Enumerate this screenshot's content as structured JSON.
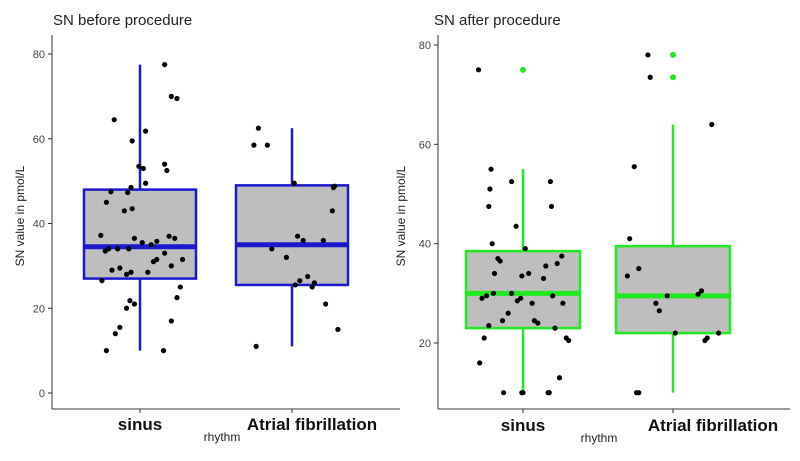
{
  "chart_data": [
    {
      "type": "box",
      "title": "SN before procedure",
      "xlabel": "rhythm",
      "ylabel": "SN value in pmol/L",
      "ylim": [
        -2,
        84
      ],
      "yticks": [
        0,
        20,
        40,
        60,
        80
      ],
      "grid": false,
      "color": "#1a1acc",
      "categories": [
        "sinus",
        "Atrial fibrillation"
      ],
      "boxes": [
        {
          "category": "sinus",
          "whisker_low": 10,
          "q1": 27,
          "median": 34.5,
          "q3": 48,
          "whisker_high": 77.5,
          "outliers": [],
          "points": [
            [
              -0.3,
              10
            ],
            [
              -0.22,
              14
            ],
            [
              -0.18,
              15.5
            ],
            [
              -0.12,
              20
            ],
            [
              -0.09,
              21.8
            ],
            [
              -0.05,
              21
            ],
            [
              0.21,
              10
            ],
            [
              0.28,
              17
            ],
            [
              0.33,
              22.5
            ],
            [
              0.36,
              25
            ],
            [
              0.38,
              31.5
            ],
            [
              -0.34,
              26.5
            ],
            [
              -0.25,
              29
            ],
            [
              -0.18,
              29.5
            ],
            [
              -0.12,
              28
            ],
            [
              -0.08,
              28.5
            ],
            [
              0.07,
              28.5
            ],
            [
              0.12,
              31
            ],
            [
              0.15,
              31.5
            ],
            [
              0.28,
              30
            ],
            [
              0.22,
              33
            ],
            [
              -0.31,
              33.5
            ],
            [
              -0.28,
              34
            ],
            [
              -0.2,
              34
            ],
            [
              -0.1,
              34
            ],
            [
              -0.05,
              36.5
            ],
            [
              0.02,
              35.5
            ],
            [
              0.1,
              35
            ],
            [
              0.15,
              35.8
            ],
            [
              0.26,
              37
            ],
            [
              0.31,
              36.5
            ],
            [
              -0.35,
              37.2
            ],
            [
              -0.07,
              43.5
            ],
            [
              -0.14,
              43
            ],
            [
              -0.3,
              45
            ],
            [
              -0.26,
              47.5
            ],
            [
              -0.08,
              48.5
            ],
            [
              -0.11,
              47.3
            ],
            [
              0.05,
              49.5
            ],
            [
              0.22,
              54
            ],
            [
              0.24,
              52.5
            ],
            [
              0.03,
              53
            ],
            [
              -0.01,
              53.5
            ],
            [
              0.05,
              61.8
            ],
            [
              -0.07,
              59.5
            ],
            [
              -0.23,
              64.5
            ],
            [
              0.28,
              70
            ],
            [
              0.33,
              69.5
            ],
            [
              0.22,
              77.5
            ]
          ]
        },
        {
          "category": "Atrial fibrillation",
          "whisker_low": 11,
          "q1": 25.5,
          "median": 35,
          "q3": 49,
          "whisker_high": 62.5,
          "outliers": [],
          "points": [
            [
              -0.32,
              11
            ],
            [
              -0.18,
              34
            ],
            [
              -0.22,
              58.5
            ],
            [
              -0.34,
              58.5
            ],
            [
              -0.3,
              62.5
            ],
            [
              -0.05,
              32
            ],
            [
              0.02,
              49.5
            ],
            [
              0.05,
              37
            ],
            [
              0.1,
              36
            ],
            [
              0.03,
              25.5
            ],
            [
              0.07,
              26.5
            ],
            [
              0.14,
              27.5
            ],
            [
              0.18,
              25
            ],
            [
              0.2,
              26
            ],
            [
              0.28,
              36
            ],
            [
              0.37,
              48.5
            ],
            [
              0.36,
              43
            ],
            [
              0.38,
              48.8
            ],
            [
              0.41,
              15
            ],
            [
              0.3,
              21
            ]
          ]
        }
      ]
    },
    {
      "type": "box",
      "title": "SN after procedure",
      "xlabel": "rhythm",
      "ylabel": "SN value in pmol/L",
      "ylim": [
        9,
        82
      ],
      "yticks": [
        20,
        40,
        60,
        80
      ],
      "grid": false,
      "color": "#22e822",
      "categories": [
        "sinus",
        "Atrial fibrillation"
      ],
      "boxes": [
        {
          "category": "sinus",
          "whisker_low": 10,
          "q1": 23,
          "median": 30,
          "q3": 38.5,
          "whisker_high": 55,
          "outliers": [
            75
          ],
          "points": [
            [
              -0.39,
              75
            ],
            [
              -0.36,
              29
            ],
            [
              -0.38,
              16
            ],
            [
              -0.34,
              21
            ],
            [
              -0.3,
              23.5
            ],
            [
              -0.32,
              29.5
            ],
            [
              -0.27,
              40
            ],
            [
              -0.25,
              34
            ],
            [
              -0.2,
              36.5
            ],
            [
              -0.22,
              37
            ],
            [
              -0.3,
              47.5
            ],
            [
              -0.29,
              51
            ],
            [
              -0.28,
              55
            ],
            [
              -0.18,
              24.5
            ],
            [
              -0.17,
              10
            ],
            [
              -0.1,
              30
            ],
            [
              -0.05,
              28.5
            ],
            [
              -0.02,
              29
            ],
            [
              0.0,
              10
            ],
            [
              -0.01,
              10
            ],
            [
              -0.06,
              43.5
            ],
            [
              -0.1,
              52.5
            ],
            [
              -0.13,
              26
            ],
            [
              -0.01,
              33.5
            ],
            [
              0.05,
              34
            ],
            [
              0.02,
              39
            ],
            [
              0.1,
              24.5
            ],
            [
              0.08,
              28
            ],
            [
              0.13,
              24
            ],
            [
              0.18,
              33
            ],
            [
              0.2,
              35.5
            ],
            [
              0.26,
              29.5
            ],
            [
              0.28,
              23
            ],
            [
              0.23,
              10
            ],
            [
              0.22,
              10
            ],
            [
              0.25,
              47.5
            ],
            [
              0.24,
              52.5
            ],
            [
              0.3,
              36
            ],
            [
              0.34,
              37.5
            ],
            [
              0.35,
              28
            ],
            [
              0.38,
              21
            ],
            [
              0.4,
              20.5
            ],
            [
              0.32,
              13
            ],
            [
              -0.26,
              30
            ]
          ]
        },
        {
          "category": "Atrial fibrillation",
          "whisker_low": 10,
          "q1": 22,
          "median": 29.5,
          "q3": 39.5,
          "whisker_high": 64,
          "outliers": [
            73.5,
            78
          ],
          "points": [
            [
              -0.38,
              41
            ],
            [
              -0.34,
              55.5
            ],
            [
              -0.4,
              33.5
            ],
            [
              -0.3,
              35
            ],
            [
              -0.3,
              10
            ],
            [
              -0.32,
              10
            ],
            [
              -0.15,
              28
            ],
            [
              -0.12,
              26.5
            ],
            [
              -0.05,
              29.5
            ],
            [
              0.02,
              22
            ],
            [
              -0.2,
              73.5
            ],
            [
              -0.22,
              78
            ],
            [
              0.22,
              29.8
            ],
            [
              0.25,
              30.5
            ],
            [
              0.28,
              20.5
            ],
            [
              0.3,
              21
            ],
            [
              0.34,
              64
            ],
            [
              0.4,
              22
            ]
          ]
        }
      ]
    }
  ]
}
